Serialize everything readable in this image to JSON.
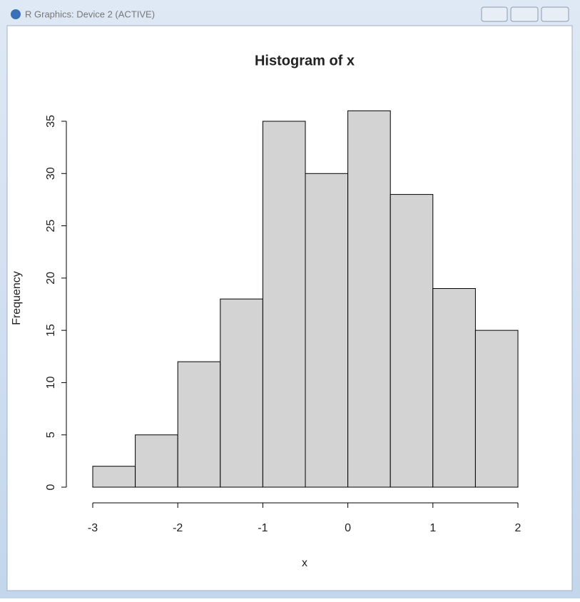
{
  "window": {
    "title": "R Graphics: Device 2 (ACTIVE)"
  },
  "chart_data": {
    "type": "histogram",
    "title": "Histogram of x",
    "x_label": "x",
    "y_label": "Frequency",
    "bins": [
      -3,
      -2.5,
      -2,
      -1.5,
      -1,
      -0.5,
      0,
      0.5,
      1,
      1.5,
      2
    ],
    "values": [
      2,
      5,
      12,
      18,
      35,
      30,
      36,
      28,
      19,
      15
    ],
    "color": "#d3d3d3",
    "xlim": [
      -3,
      2
    ],
    "xticks": [
      -3,
      -2,
      -1,
      0,
      1,
      2
    ],
    "ylim": [
      0,
      35
    ],
    "yticks": [
      0,
      5,
      10,
      15,
      20,
      25,
      30,
      35
    ]
  }
}
